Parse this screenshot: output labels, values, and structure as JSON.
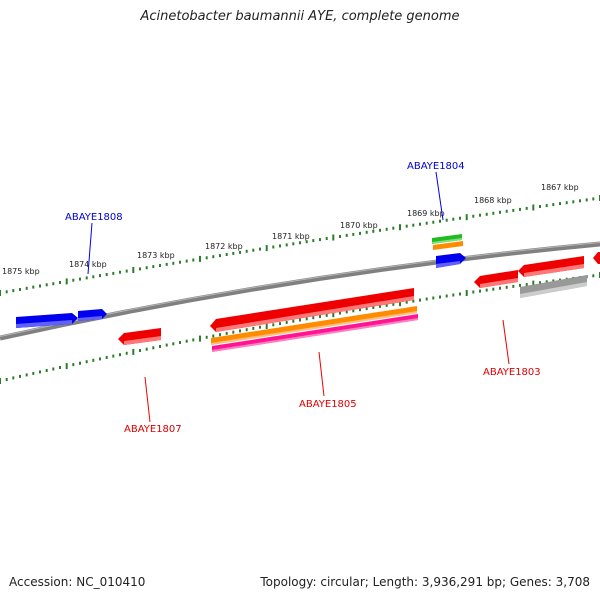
{
  "title": "Acinetobacter baumannii AYE, complete genome",
  "footer": {
    "accession": "Accession: NC_010410",
    "summary": "Topology: circular; Length: 3,936,291 bp; Genes: 3,708"
  },
  "colors": {
    "backbone": "#808080",
    "tick": "#2e7d2e",
    "forward_gene": "#0000ee",
    "reverse_gene": "#ee0000",
    "orange": "#ff8c00",
    "magenta": "#ff1493",
    "green": "#22bb22",
    "gray": "#aaaaaa"
  },
  "kbp_labels": [
    "1875 kbp",
    "1874 kbp",
    "1873 kbp",
    "1872 kbp",
    "1871 kbp",
    "1870 kbp",
    "1869 kbp",
    "1868 kbp",
    "1867 kbp"
  ],
  "gene_labels": {
    "abaye1808": "ABAYE1808",
    "abaye1804": "ABAYE1804",
    "abaye1807": "ABAYE1807",
    "abaye1805": "ABAYE1805",
    "abaye1803": "ABAYE1803"
  }
}
